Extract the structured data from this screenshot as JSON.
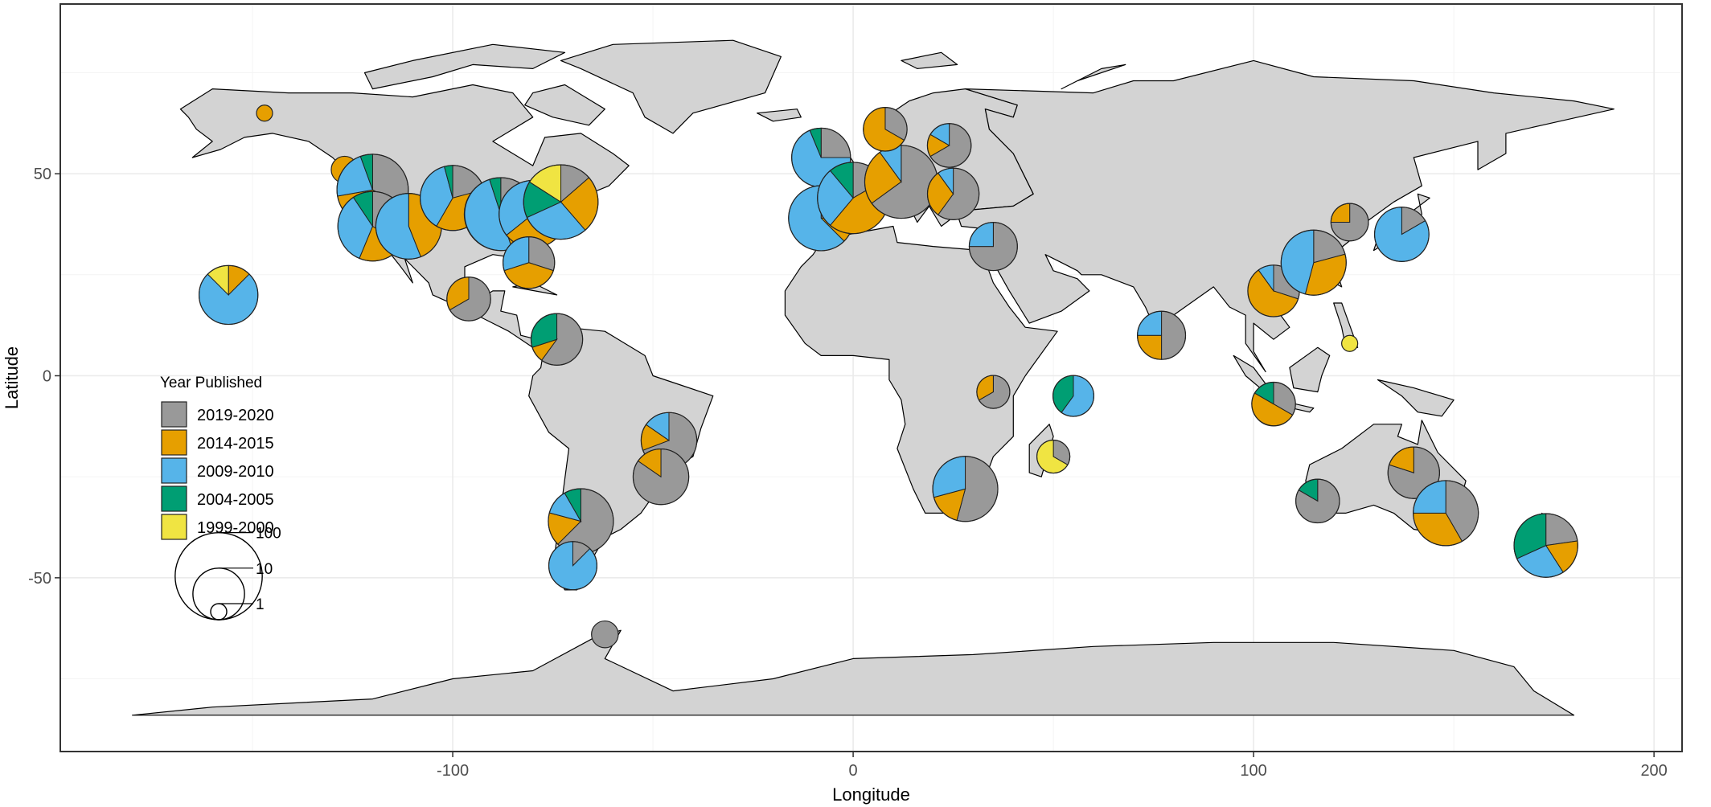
{
  "axes": {
    "x_title": "Longitude",
    "y_title": "Latitude",
    "xlim": [
      -198,
      207
    ],
    "ylim": [
      -93,
      92
    ],
    "x_ticks": [
      {
        "value": -100,
        "label": "-100"
      },
      {
        "value": 0,
        "label": "0"
      },
      {
        "value": 100,
        "label": "100"
      },
      {
        "value": 200,
        "label": "200"
      }
    ],
    "y_ticks": [
      {
        "value": 50,
        "label": "50"
      },
      {
        "value": 0,
        "label": "0"
      },
      {
        "value": -50,
        "label": "-50"
      }
    ],
    "grid": true
  },
  "colors": {
    "land": "#d3d3d3",
    "border": "#000000",
    "grid": "#ebebeb",
    "2019-2020": "#999999",
    "2014-2015": "#e69f00",
    "2009-2010": "#56b4e9",
    "2004-2005": "#009e73",
    "1999-2000": "#f0e442"
  },
  "legend": {
    "title": "Year Published",
    "items": [
      {
        "key": "2019-2020",
        "label": "2019-2020"
      },
      {
        "key": "2014-2015",
        "label": "2014-2015"
      },
      {
        "key": "2009-2010",
        "label": "2009-2010"
      },
      {
        "key": "2004-2005",
        "label": "2004-2005"
      },
      {
        "key": "1999-2000",
        "label": "1999-2000"
      }
    ],
    "size_labels": [
      {
        "value": 100,
        "label": "100"
      },
      {
        "value": 10,
        "label": "10"
      },
      {
        "value": 1,
        "label": "1"
      }
    ]
  },
  "pies": [
    {
      "lon": -147,
      "lat": 65,
      "total": 1,
      "slices": [
        0,
        1,
        0,
        0,
        0
      ]
    },
    {
      "lon": -127,
      "lat": 51,
      "total": 2,
      "slices": [
        0,
        2,
        0,
        0,
        0
      ]
    },
    {
      "lon": -120,
      "lat": 46,
      "total": 36,
      "slices": [
        12,
        14,
        8,
        2,
        0
      ]
    },
    {
      "lon": -120,
      "lat": 37,
      "total": 32,
      "slices": [
        11,
        7,
        11,
        3,
        0
      ]
    },
    {
      "lon": -111,
      "lat": 37,
      "total": 25,
      "slices": [
        0,
        11,
        14,
        0,
        0
      ]
    },
    {
      "lon": -100,
      "lat": 44,
      "total": 24,
      "slices": [
        5,
        9,
        9,
        1,
        0
      ]
    },
    {
      "lon": -88,
      "lat": 40,
      "total": 40,
      "slices": [
        11,
        7,
        20,
        2,
        0
      ]
    },
    {
      "lon": -80,
      "lat": 40,
      "total": 28,
      "slices": [
        8,
        10,
        10,
        0,
        0
      ]
    },
    {
      "lon": -73,
      "lat": 43,
      "total": 44,
      "slices": [
        6,
        11,
        13,
        7,
        7
      ]
    },
    {
      "lon": -81,
      "lat": 28,
      "total": 10,
      "slices": [
        3,
        4,
        3,
        0,
        0
      ]
    },
    {
      "lon": -156,
      "lat": 20,
      "total": 16,
      "slices": [
        0,
        2,
        12,
        0,
        2
      ]
    },
    {
      "lon": -96,
      "lat": 19,
      "total": 6,
      "slices": [
        4,
        2,
        0,
        0,
        0
      ]
    },
    {
      "lon": -74,
      "lat": 9,
      "total": 10,
      "slices": [
        6,
        1,
        0,
        3,
        0
      ]
    },
    {
      "lon": -46,
      "lat": -16,
      "total": 13,
      "slices": [
        9,
        2,
        2,
        0,
        0
      ]
    },
    {
      "lon": -48,
      "lat": -25,
      "total": 13,
      "slices": [
        11,
        2,
        0,
        0,
        0
      ]
    },
    {
      "lon": -68,
      "lat": -36,
      "total": 24,
      "slices": [
        15,
        4,
        3,
        2,
        0
      ]
    },
    {
      "lon": -70,
      "lat": -47,
      "total": 8,
      "slices": [
        1,
        0,
        7,
        0,
        0
      ]
    },
    {
      "lon": -62,
      "lat": -64,
      "total": 2,
      "slices": [
        2,
        0,
        0,
        0,
        0
      ]
    },
    {
      "lon": -8,
      "lat": 54,
      "total": 16,
      "slices": [
        4,
        0,
        11,
        1,
        0
      ]
    },
    {
      "lon": -8,
      "lat": 39,
      "total": 24,
      "slices": [
        6,
        3,
        15,
        0,
        0
      ]
    },
    {
      "lon": 0,
      "lat": 44,
      "total": 36,
      "slices": [
        6,
        16,
        10,
        4,
        0
      ]
    },
    {
      "lon": 12,
      "lat": 48,
      "total": 40,
      "slices": [
        26,
        10,
        4,
        0,
        0
      ]
    },
    {
      "lon": 8,
      "lat": 61,
      "total": 6,
      "slices": [
        2,
        4,
        0,
        0,
        0
      ]
    },
    {
      "lon": 24,
      "lat": 57,
      "total": 6,
      "slices": [
        4,
        1,
        1,
        0,
        0
      ]
    },
    {
      "lon": 25,
      "lat": 45,
      "total": 10,
      "slices": [
        6,
        3,
        1,
        0,
        0
      ]
    },
    {
      "lon": 35,
      "lat": 32,
      "total": 8,
      "slices": [
        6,
        0,
        2,
        0,
        0
      ]
    },
    {
      "lon": 35,
      "lat": -4,
      "total": 3,
      "slices": [
        2,
        1,
        0,
        0,
        0
      ]
    },
    {
      "lon": 55,
      "lat": -5,
      "total": 5,
      "slices": [
        0,
        0,
        3,
        2,
        0
      ]
    },
    {
      "lon": 50,
      "lat": -20,
      "total": 3,
      "slices": [
        1,
        0,
        0,
        0,
        2
      ]
    },
    {
      "lon": 28,
      "lat": -28,
      "total": 24,
      "slices": [
        13,
        4,
        7,
        0,
        0
      ]
    },
    {
      "lon": 77,
      "lat": 10,
      "total": 8,
      "slices": [
        4,
        2,
        2,
        0,
        0
      ]
    },
    {
      "lon": 105,
      "lat": 21,
      "total": 10,
      "slices": [
        3,
        6,
        1,
        0,
        0
      ]
    },
    {
      "lon": 115,
      "lat": 28,
      "total": 24,
      "slices": [
        5,
        8,
        11,
        0,
        0
      ]
    },
    {
      "lon": 105,
      "lat": -7,
      "total": 6,
      "slices": [
        2,
        3,
        0,
        1,
        0
      ]
    },
    {
      "lon": 124,
      "lat": 38,
      "total": 4,
      "slices": [
        3,
        1,
        0,
        0,
        0
      ]
    },
    {
      "lon": 137,
      "lat": 35,
      "total": 12,
      "slices": [
        2,
        0,
        10,
        0,
        0
      ]
    },
    {
      "lon": 124,
      "lat": 8,
      "total": 1,
      "slices": [
        0,
        0,
        0,
        0,
        1
      ]
    },
    {
      "lon": 140,
      "lat": -24,
      "total": 10,
      "slices": [
        8,
        2,
        0,
        0,
        0
      ]
    },
    {
      "lon": 116,
      "lat": -31,
      "total": 6,
      "slices": [
        5,
        0,
        0,
        1,
        0
      ]
    },
    {
      "lon": 148,
      "lat": -34,
      "total": 24,
      "slices": [
        10,
        8,
        6,
        0,
        0
      ]
    },
    {
      "lon": 173,
      "lat": -42,
      "total": 22,
      "slices": [
        5,
        4,
        6,
        7,
        0
      ]
    }
  ]
}
